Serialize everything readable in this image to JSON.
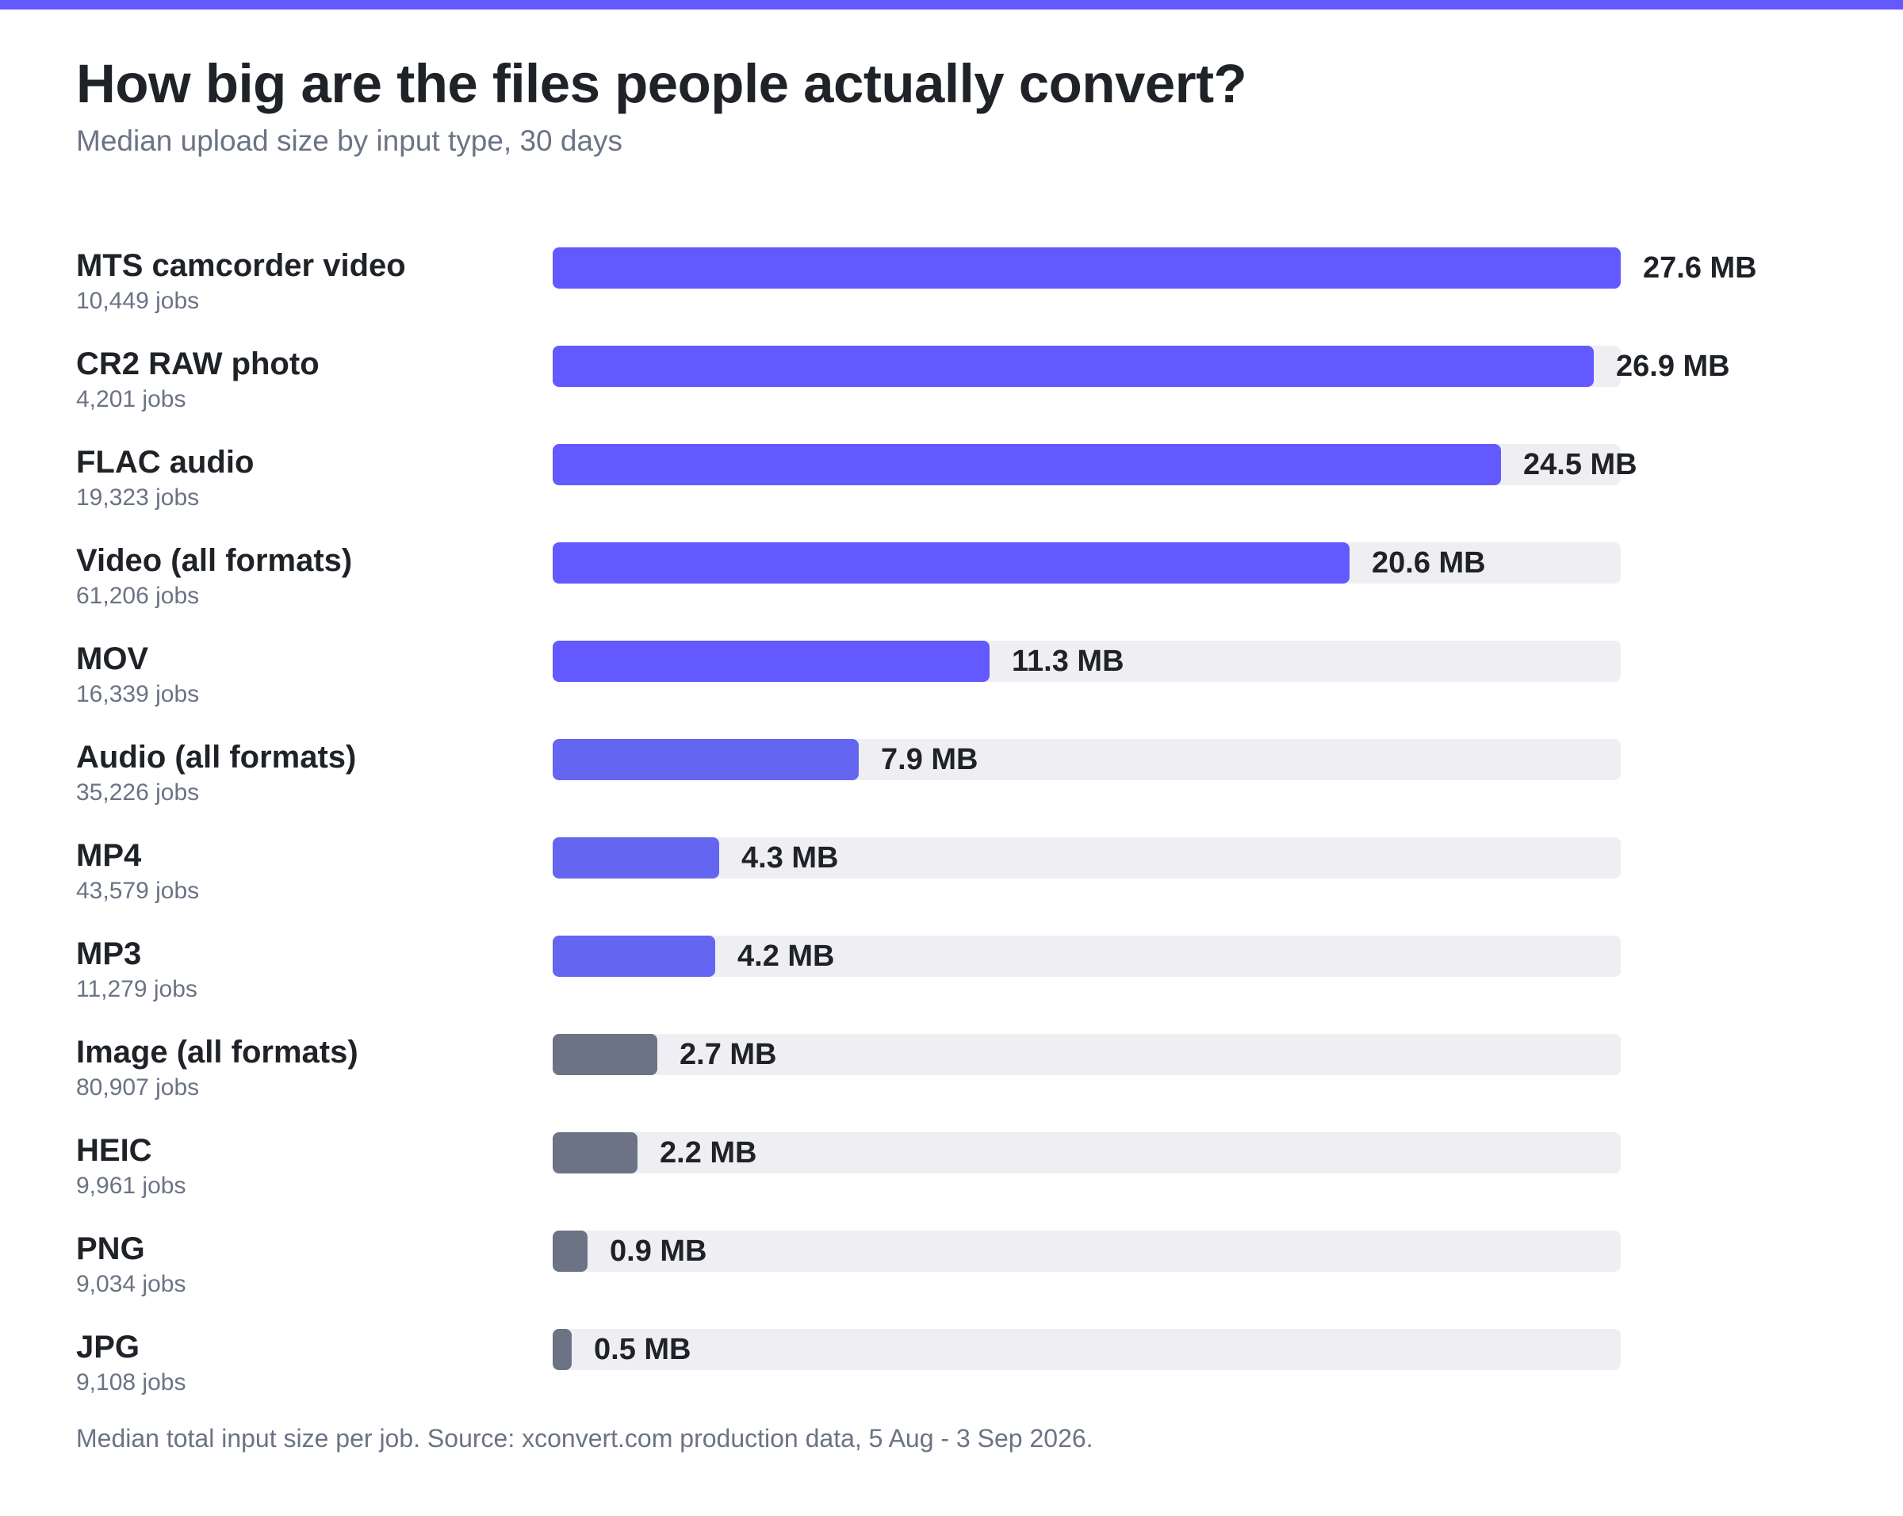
{
  "colors": {
    "accent": "#6359ff",
    "accent_light": "#6466f1",
    "image_bar": "#6b7385",
    "track": "#efeff3"
  },
  "chart_data": {
    "type": "bar",
    "orientation": "horizontal",
    "title": "How big are the files people actually convert?",
    "subtitle": "Median upload size by input type, 30 days",
    "footnote": "Median total input size per job. Source: xconvert.com production data, 5 Aug - 3 Sep 2026.",
    "unit": "MB",
    "xlim": [
      0,
      27.6
    ],
    "grid": false,
    "legend": "none",
    "categories": [
      "MTS camcorder video",
      "CR2 RAW photo",
      "FLAC audio",
      "Video (all formats)",
      "MOV",
      "Audio (all formats)",
      "MP4",
      "MP3",
      "Image (all formats)",
      "HEIC",
      "PNG",
      "JPG"
    ],
    "values": [
      27.6,
      26.9,
      24.5,
      20.6,
      11.3,
      7.9,
      4.3,
      4.2,
      2.7,
      2.2,
      0.9,
      0.5
    ],
    "bars": [
      {
        "label": "MTS camcorder video",
        "jobs": "10,449 jobs",
        "value": 27.6,
        "value_label": "27.6 MB",
        "color": "#6359ff"
      },
      {
        "label": "CR2 RAW photo",
        "jobs": "4,201 jobs",
        "value": 26.9,
        "value_label": "26.9 MB",
        "color": "#6359ff"
      },
      {
        "label": "FLAC audio",
        "jobs": "19,323 jobs",
        "value": 24.5,
        "value_label": "24.5 MB",
        "color": "#6359ff"
      },
      {
        "label": "Video (all formats)",
        "jobs": "61,206 jobs",
        "value": 20.6,
        "value_label": "20.6 MB",
        "color": "#6359ff"
      },
      {
        "label": "MOV",
        "jobs": "16,339 jobs",
        "value": 11.3,
        "value_label": "11.3 MB",
        "color": "#6359ff"
      },
      {
        "label": "Audio (all formats)",
        "jobs": "35,226 jobs",
        "value": 7.9,
        "value_label": "7.9 MB",
        "color": "#6466f1"
      },
      {
        "label": "MP4",
        "jobs": "43,579 jobs",
        "value": 4.3,
        "value_label": "4.3 MB",
        "color": "#6466f1"
      },
      {
        "label": "MP3",
        "jobs": "11,279 jobs",
        "value": 4.2,
        "value_label": "4.2 MB",
        "color": "#6466f1"
      },
      {
        "label": "Image (all formats)",
        "jobs": "80,907 jobs",
        "value": 2.7,
        "value_label": "2.7 MB",
        "color": "#6b7385"
      },
      {
        "label": "HEIC",
        "jobs": "9,961 jobs",
        "value": 2.2,
        "value_label": "2.2 MB",
        "color": "#6b7385"
      },
      {
        "label": "PNG",
        "jobs": "9,034 jobs",
        "value": 0.9,
        "value_label": "0.9 MB",
        "color": "#6b7385"
      },
      {
        "label": "JPG",
        "jobs": "9,108 jobs",
        "value": 0.5,
        "value_label": "0.5 MB",
        "color": "#6b7385"
      }
    ]
  }
}
